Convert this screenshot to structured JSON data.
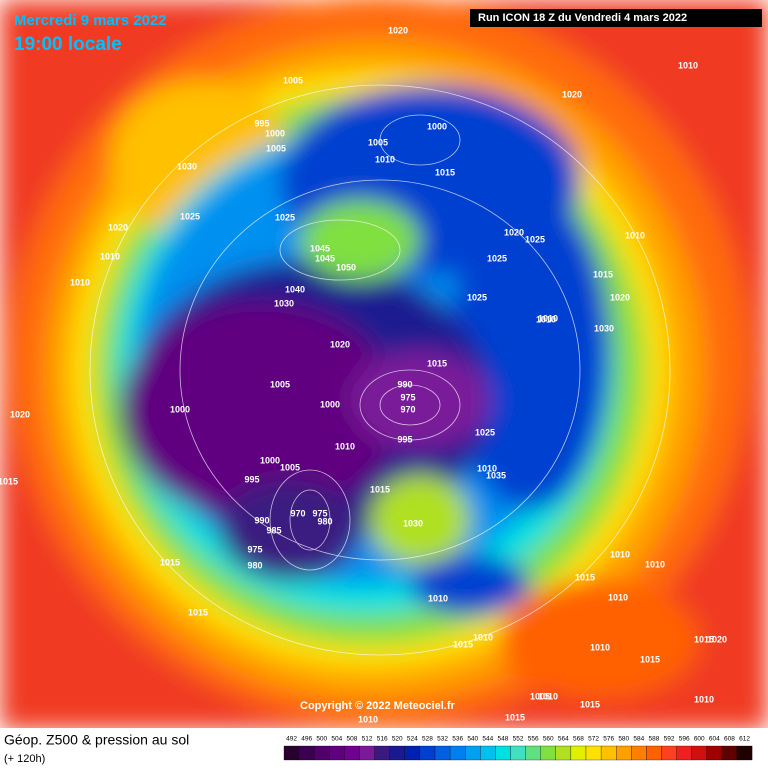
{
  "header": {
    "date": "Mercredi 9 mars 2022",
    "time": "19:00 locale",
    "run": "Run ICON 18 Z du Vendredi 4 mars 2022"
  },
  "copyright": "Copyright © 2022 Meteociel.fr",
  "legend": {
    "title": "Géop. Z500 & pression au sol",
    "subtitle": "(+ 120h)",
    "values": [
      492,
      496,
      500,
      504,
      508,
      512,
      516,
      520,
      524,
      528,
      532,
      536,
      540,
      544,
      548,
      552,
      556,
      560,
      564,
      568,
      572,
      576,
      580,
      584,
      588,
      592,
      596,
      600,
      604,
      608,
      612
    ],
    "colors": [
      "#2a0030",
      "#3d0050",
      "#50006a",
      "#600080",
      "#700090",
      "#7a1a9a",
      "#3a1a80",
      "#1a1a90",
      "#0020b0",
      "#0040d0",
      "#0060e0",
      "#0080f0",
      "#00a0f0",
      "#00c0f0",
      "#00e0e0",
      "#40e0c0",
      "#60e080",
      "#80e040",
      "#b0e020",
      "#e0f000",
      "#ffe000",
      "#ffc000",
      "#ffa000",
      "#ff8000",
      "#ff6000",
      "#ff4020",
      "#f02020",
      "#d01010",
      "#a00000",
      "#600000",
      "#200000"
    ]
  },
  "pressure_labels": [
    1020,
    1005,
    995,
    1000,
    1005,
    1030,
    1000,
    1005,
    1020,
    1025,
    1020,
    1010,
    1015,
    1010,
    1010,
    1025,
    1045,
    1045,
    1050,
    1040,
    1030,
    1020,
    1025,
    1025,
    1010,
    1010,
    1015,
    1025,
    1030,
    1020,
    1010,
    1005,
    1000,
    1000,
    990,
    975,
    970,
    995,
    1000,
    1005,
    1010,
    995,
    990,
    985,
    970,
    975,
    980,
    975,
    980,
    1015,
    1020,
    1015,
    1030,
    1010,
    1035,
    1025,
    1015,
    1010,
    1010,
    1015,
    1010,
    1015,
    1005,
    1010,
    1015,
    1010,
    1010,
    1015,
    1020,
    1015,
    1010,
    1010,
    1015,
    1020,
    1015,
    1015,
    1010,
    1010
  ]
}
